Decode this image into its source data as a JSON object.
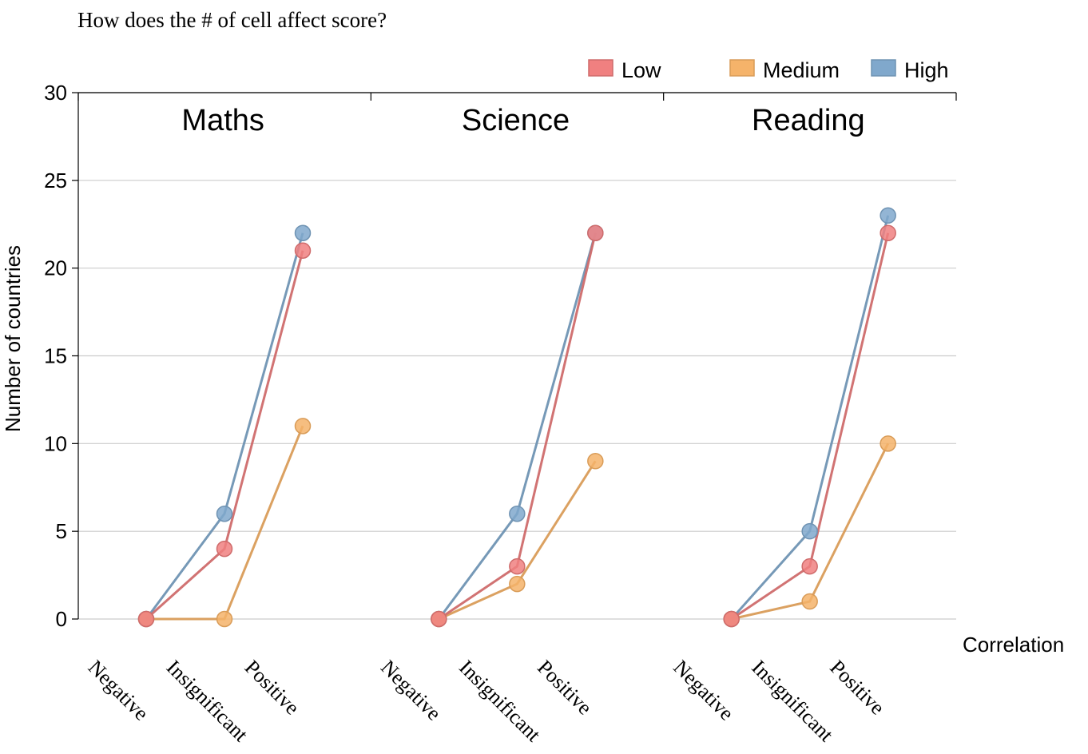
{
  "chart_data": {
    "type": "line",
    "title": "How does the # of cell affect score?",
    "ylabel": "Number of countries",
    "xlabel": "Correlation",
    "ylim": [
      0,
      30
    ],
    "yticks": [
      0,
      5,
      10,
      15,
      20,
      25,
      30
    ],
    "grid": true,
    "legend_position": "top-right",
    "categories": [
      "Negative",
      "Insignificant",
      "Positive"
    ],
    "series_colors": {
      "Low": "#f08080",
      "Medium": "#f5b36a",
      "High": "#80a8cc"
    },
    "series_stroke": {
      "Low": "#cf6b6b",
      "Medium": "#d99c58",
      "High": "#6f93b3"
    },
    "legend": [
      {
        "name": "Low"
      },
      {
        "name": "Medium"
      },
      {
        "name": "High"
      }
    ],
    "panels": [
      {
        "name": "Maths",
        "series": [
          {
            "name": "High",
            "values": [
              0,
              6,
              22
            ]
          },
          {
            "name": "Medium",
            "values": [
              0,
              0,
              11
            ]
          },
          {
            "name": "Low",
            "values": [
              0,
              4,
              21
            ]
          }
        ]
      },
      {
        "name": "Science",
        "series": [
          {
            "name": "High",
            "values": [
              0,
              6,
              22
            ]
          },
          {
            "name": "Medium",
            "values": [
              0,
              2,
              9
            ]
          },
          {
            "name": "Low",
            "values": [
              0,
              3,
              22
            ]
          }
        ]
      },
      {
        "name": "Reading",
        "series": [
          {
            "name": "High",
            "values": [
              0,
              5,
              23
            ]
          },
          {
            "name": "Medium",
            "values": [
              0,
              1,
              10
            ]
          },
          {
            "name": "Low",
            "values": [
              0,
              3,
              22
            ]
          }
        ]
      }
    ]
  }
}
